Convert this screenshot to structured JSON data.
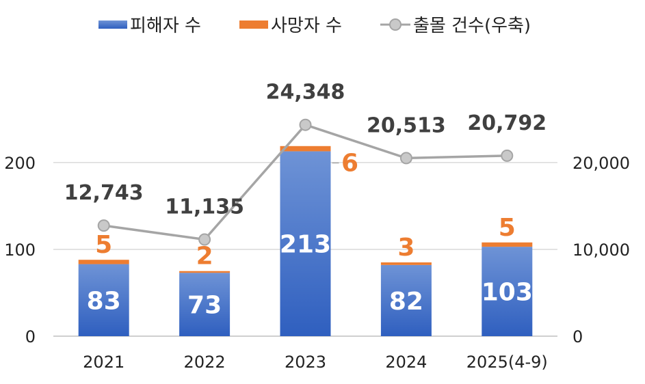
{
  "chart_data": {
    "type": "bar",
    "categories": [
      "2021",
      "2022",
      "2023",
      "2024",
      "2025(4-9)"
    ],
    "series": [
      {
        "name": "피해자 수",
        "kind": "stacked-bar",
        "axis": "left",
        "color": "#4472C4",
        "values": [
          83,
          73,
          213,
          82,
          103
        ]
      },
      {
        "name": "사망자 수",
        "kind": "stacked-bar",
        "axis": "left",
        "color": "#ED7D31",
        "values": [
          5,
          2,
          6,
          3,
          5
        ]
      },
      {
        "name": "출몰 건수(우축)",
        "kind": "line",
        "axis": "right",
        "color": "#A5A5A5",
        "values": [
          12743,
          11135,
          24348,
          20513,
          20792
        ]
      }
    ],
    "victim_labels": [
      "83",
      "73",
      "213",
      "82",
      "103"
    ],
    "death_labels": [
      "5",
      "2",
      "6",
      "3",
      "5"
    ],
    "line_labels": [
      "12,743",
      "11,135",
      "24,348",
      "20,513",
      "20,792"
    ],
    "left_axis": {
      "ticks": [
        "0",
        "100",
        "200"
      ],
      "tick_values": [
        0,
        100,
        200
      ],
      "ylim": [
        0,
        270
      ]
    },
    "right_axis": {
      "ticks": [
        "0",
        "10,000",
        "20,000"
      ],
      "tick_values": [
        0,
        10000,
        20000
      ],
      "ylim": [
        0,
        27000
      ]
    },
    "grid": true,
    "legend_position": "top"
  }
}
